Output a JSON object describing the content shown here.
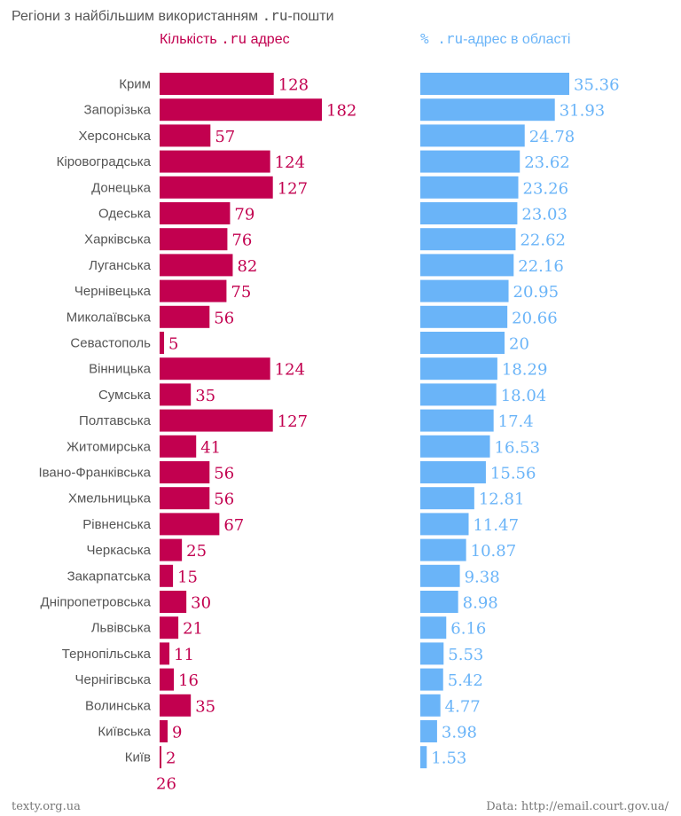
{
  "title": "Регіони з найбільшим використанням .ru-пошти",
  "legend": {
    "count_label": "Кількість .ru адрес",
    "percent_label": "% .ru-адрес в області"
  },
  "colors": {
    "count_bar": "#c2004f",
    "percent_bar": "#6ab4f8",
    "text": "#555555"
  },
  "footer": {
    "source_site": "texty.org.ua",
    "data_source": "Data: http://email.court.gov.ua/"
  },
  "chart_data": [
    {
      "type": "bar",
      "orientation": "horizontal",
      "title": "Кількість .ru адрес",
      "categories": [
        "Крим",
        "Запорізька",
        "Херсонська",
        "Кіровоградська",
        "Донецька",
        "Одеська",
        "Харківська",
        "Луганська",
        "Чернівецька",
        "Миколаївська",
        "Севастополь",
        "Вінницька",
        "Сумська",
        "Полтавська",
        "Житомирська",
        "Івано-Франківська",
        "Хмельницька",
        "Рівненська",
        "Черкаська",
        "Закарпатська",
        "Дніпропетровська",
        "Львівська",
        "Тернопільська",
        "Чернігівська",
        "Волинська",
        "Київська",
        "Київ"
      ],
      "values": [
        128,
        182,
        57,
        124,
        127,
        79,
        76,
        82,
        75,
        56,
        5,
        124,
        35,
        127,
        41,
        56,
        56,
        67,
        25,
        15,
        30,
        21,
        11,
        16,
        35,
        9,
        2
      ],
      "extra_values": [
        26,
        25
      ],
      "grid": false,
      "legend": "top"
    },
    {
      "type": "bar",
      "orientation": "horizontal",
      "title": "% .ru-адрес в області",
      "categories": [
        "Крим",
        "Запорізька",
        "Херсонська",
        "Кіровоградська",
        "Донецька",
        "Одеська",
        "Харківська",
        "Луганська",
        "Чернівецька",
        "Миколаївська",
        "Севастополь",
        "Вінницька",
        "Сумська",
        "Полтавська",
        "Житомирська",
        "Івано-Франківська",
        "Хмельницька",
        "Рівненська",
        "Черкаська",
        "Закарпатська",
        "Дніпропетровська",
        "Львівська",
        "Тернопільська",
        "Чернігівська",
        "Волинська",
        "Київська",
        "Київ"
      ],
      "values": [
        "35.36",
        "31.93",
        "24.78",
        "23.62",
        "23.26",
        "23.03",
        "22.62",
        "22.16",
        "20.95",
        "20.66",
        "20",
        "18.29",
        "18.04",
        "17.4",
        "16.53",
        "15.56",
        "12.81",
        "11.47",
        "10.87",
        "9.38",
        "8.98",
        "6.16",
        "5.53",
        "5.42",
        "4.77",
        "3.98",
        "1.53"
      ],
      "grid": false,
      "legend": "top"
    }
  ]
}
